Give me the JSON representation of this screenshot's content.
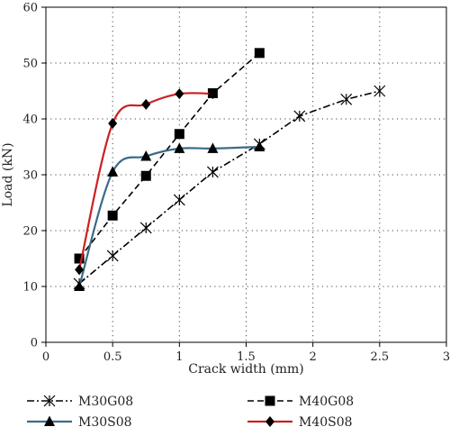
{
  "chart_data": {
    "type": "line",
    "title": "",
    "xlabel": "Crack width (mm)",
    "ylabel": "Load (kN)",
    "xlim": [
      0,
      3
    ],
    "ylim": [
      0,
      60
    ],
    "xticks": [
      "0",
      "0.5",
      "1",
      "1.5",
      "2",
      "2.5",
      "3"
    ],
    "yticks": [
      "0",
      "10",
      "20",
      "30",
      "40",
      "50",
      "60"
    ],
    "grid": true,
    "legend_position": "bottom",
    "series": [
      {
        "name": "M30G08",
        "color": "#000000",
        "line_style": "dash-dot",
        "marker": "asterisk",
        "smooth": false,
        "x": [
          0.25,
          0.5,
          0.75,
          1.0,
          1.25,
          1.6,
          1.9,
          2.25,
          2.5
        ],
        "y": [
          10.5,
          15.5,
          20.5,
          25.5,
          30.5,
          35.5,
          40.5,
          43.5,
          45.0
        ]
      },
      {
        "name": "M40G08",
        "color": "#000000",
        "line_style": "dashed",
        "marker": "square",
        "smooth": false,
        "x": [
          0.25,
          0.5,
          0.75,
          1.0,
          1.25,
          1.6
        ],
        "y": [
          15.0,
          22.7,
          29.8,
          37.3,
          44.6,
          51.8
        ]
      },
      {
        "name": "M30S08",
        "color": "#3a6b88",
        "line_style": "solid",
        "marker": "triangle",
        "smooth": true,
        "x": [
          0.25,
          0.5,
          0.75,
          1.0,
          1.25,
          1.6
        ],
        "y": [
          10.0,
          30.5,
          33.3,
          34.7,
          34.7,
          35.0
        ]
      },
      {
        "name": "M40S08",
        "color": "#cc2020",
        "line_style": "solid",
        "marker": "diamond",
        "smooth": true,
        "x": [
          0.25,
          0.5,
          0.75,
          1.0,
          1.25
        ],
        "y": [
          13.0,
          39.2,
          42.6,
          44.5,
          44.5
        ]
      }
    ]
  }
}
